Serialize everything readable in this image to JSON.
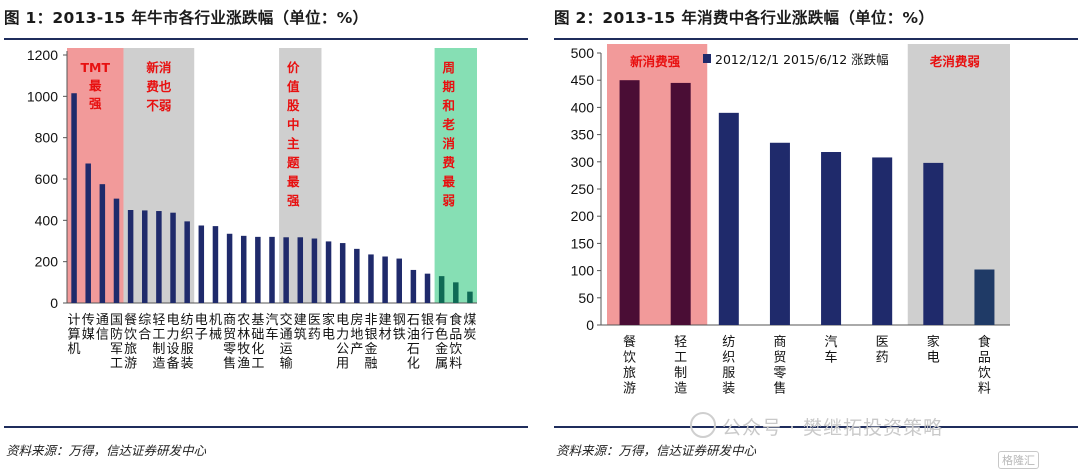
{
  "figure1": {
    "title": "图 1：2013-15 年牛市各行业涨跌幅（单位：%）",
    "source": "资料来源：万得，信达证券研发中心"
  },
  "figure2": {
    "title": "图 2：2013-15 年消费中各行业涨跌幅（单位：%）",
    "source": "资料来源：万得，信达证券研发中心"
  },
  "watermark": "公众号 · 樊继拓投资策略",
  "logo_text": "格隆汇",
  "colors": {
    "bar": "#1f2a6b",
    "bar_highlight": "#4a0d35",
    "highlight_red": "#f29a9a",
    "highlight_gray": "#cfcfcf",
    "highlight_green": "#86dfb4",
    "annotation_text": "#e81010",
    "rule": "#1f2d5c"
  },
  "chart_data": [
    {
      "type": "bar",
      "ylim": [
        0,
        1200
      ],
      "yticks": [
        0,
        200,
        400,
        600,
        800,
        1000,
        1200
      ],
      "grid": false,
      "categories": [
        "计算机",
        "传媒",
        "通信",
        "国防军工",
        "餐饮旅游",
        "综合",
        "轻工制造",
        "电力设备",
        "纺织服装",
        "电子",
        "机械",
        "商贸零售",
        "农林牧渔",
        "基础化工",
        "汽车",
        "交通运输",
        "建筑",
        "医药",
        "家电",
        "电力公用",
        "房地产",
        "非银金融",
        "建材",
        "钢铁",
        "石油石化",
        "银行",
        "有色金属",
        "食品饮料",
        "煤炭"
      ],
      "values": [
        1015,
        675,
        575,
        505,
        450,
        448,
        445,
        437,
        395,
        375,
        372,
        335,
        325,
        320,
        320,
        318,
        318,
        312,
        298,
        290,
        262,
        235,
        225,
        215,
        160,
        142,
        130,
        100,
        55
      ],
      "highlight_colors": [
        "#1f2a6b",
        "#1f2a6b",
        "#1f2a6b",
        "#1f2a6b",
        "#1f2a6b",
        "#1f2a6b",
        "#1f2a6b",
        "#1f2a6b",
        "#1f2a6b",
        "#1f2a6b",
        "#1f2a6b",
        "#1f2a6b",
        "#1f2a6b",
        "#1f2a6b",
        "#1f2a6b",
        "#1f2a6b",
        "#1f2a6b",
        "#1f2a6b",
        "#1f2a6b",
        "#1f2a6b",
        "#1f2a6b",
        "#1f2a6b",
        "#1f2a6b",
        "#1f2a6b",
        "#1f2a6b",
        "#1f2a6b",
        "#0f6a55",
        "#0f6a55",
        "#0f6a55"
      ],
      "annotations": [
        {
          "text": "TMT最强",
          "from_index": 0,
          "to_index": 3,
          "fill": "#f29a9a"
        },
        {
          "text": "新消费也不弱",
          "from_index": 4,
          "to_index": 8,
          "fill": "#cfcfcf"
        },
        {
          "text": "价值股中主题最强",
          "from_index": 15,
          "to_index": 17,
          "fill": "#cfcfcf"
        },
        {
          "text": "周期和老消费最弱",
          "from_index": 26,
          "to_index": 28,
          "fill": "#86dfb4"
        }
      ]
    },
    {
      "type": "bar",
      "ylim": [
        0,
        500
      ],
      "yticks": [
        0,
        50,
        100,
        150,
        200,
        250,
        300,
        350,
        400,
        450,
        500
      ],
      "grid": false,
      "legend": {
        "placement": "top",
        "label": "2012/12/1  2015/6/12  涨跌幅"
      },
      "categories": [
        "餐饮旅游",
        "轻工制造",
        "纺织服装",
        "商贸零售",
        "汽车",
        "医药",
        "家电",
        "食品饮料"
      ],
      "values": [
        450,
        445,
        390,
        335,
        318,
        308,
        298,
        102
      ],
      "bar_colors": [
        "#4a0d35",
        "#4a0d35",
        "#1f2a6b",
        "#1f2a6b",
        "#1f2a6b",
        "#1f2a6b",
        "#1f2a6b",
        "#1f3a66"
      ],
      "annotations": [
        {
          "text": "新消费强",
          "from_index": 0,
          "to_index": 1,
          "fill": "#f29a9a"
        },
        {
          "text": "老消费弱",
          "from_index": 6,
          "to_index": 7,
          "fill": "#cfcfcf"
        }
      ]
    }
  ]
}
